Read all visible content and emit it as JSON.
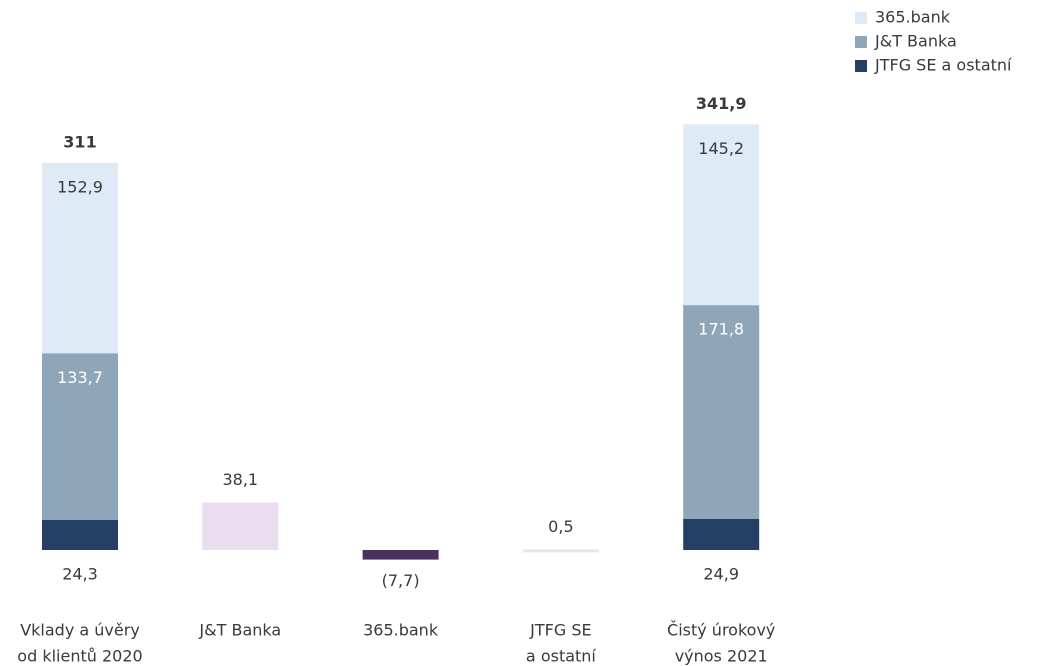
{
  "chart_data": {
    "type": "waterfall",
    "categories": [
      [
        "Vklady a úvěry",
        "od klientů 2020"
      ],
      [
        "J&T Banka"
      ],
      [
        "365.bank"
      ],
      [
        "JTFG SE",
        "a ostatní"
      ],
      [
        "Čistý úrokový",
        "výnos 2021"
      ]
    ],
    "series": [
      {
        "name": "JTFG SE a ostatní",
        "color": "#243f63",
        "values": [
          24.3,
          null,
          null,
          null,
          24.9
        ],
        "value_labels": [
          "24,3",
          null,
          null,
          null,
          "24,9"
        ]
      },
      {
        "name": "J&T Banka",
        "color": "#8fa6b9",
        "values": [
          133.7,
          null,
          null,
          null,
          171.8
        ],
        "value_labels": [
          "133,7",
          null,
          null,
          null,
          "171,8"
        ]
      },
      {
        "name": "365.bank",
        "color": "#deeaf5",
        "values": [
          152.9,
          null,
          null,
          null,
          145.2
        ],
        "value_labels": [
          "152,9",
          null,
          null,
          null,
          "145,2"
        ]
      }
    ],
    "changes": {
      "values": [
        null,
        38.1,
        -7.7,
        0.5,
        null
      ],
      "value_labels": [
        null,
        "38,1",
        "(7,7)",
        "0,5",
        null
      ],
      "colors": [
        null,
        "#ecdcef",
        "#4a2f5f",
        "#e6e6e6",
        null
      ]
    },
    "totals": {
      "values": [
        311,
        null,
        null,
        null,
        341.9
      ],
      "value_labels": [
        "311",
        null,
        null,
        null,
        "341,9"
      ]
    },
    "legend": "top-right"
  }
}
